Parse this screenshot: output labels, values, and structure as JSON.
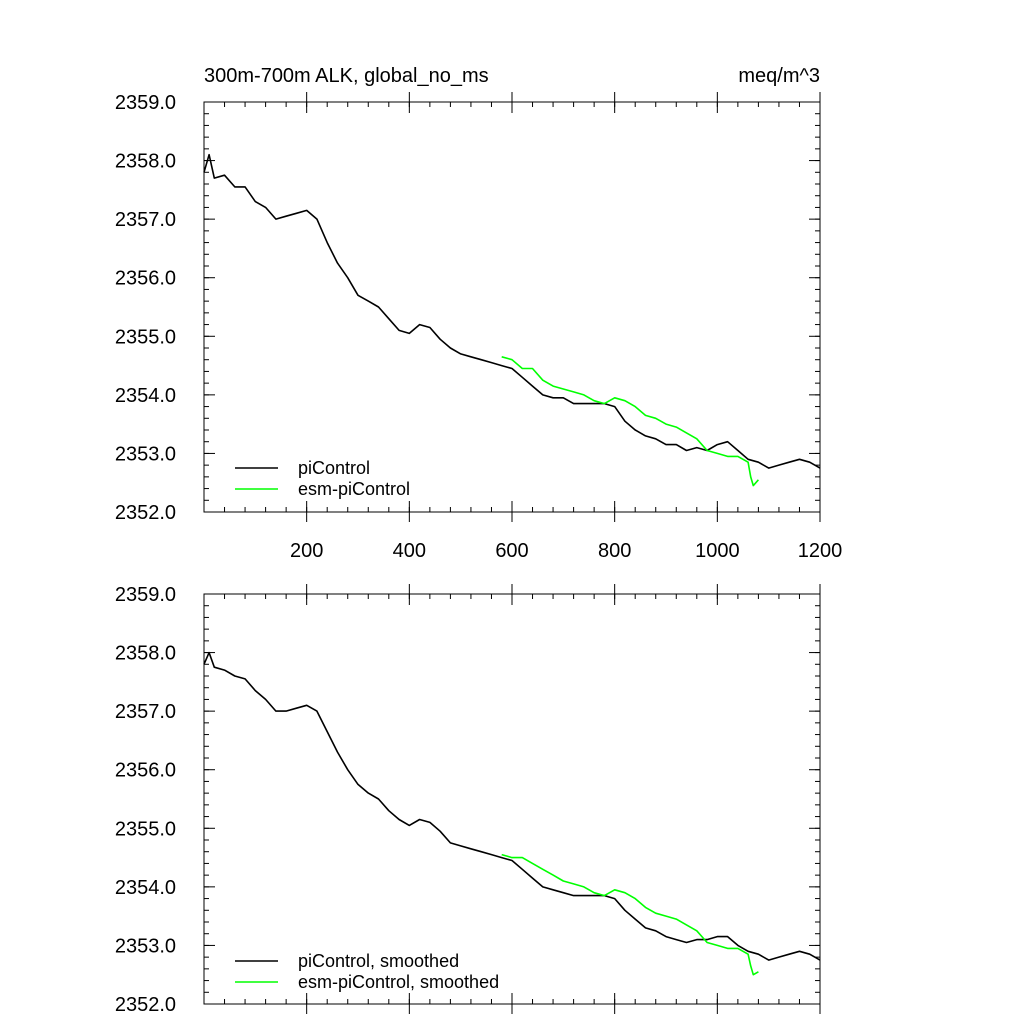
{
  "chart_data": [
    {
      "type": "line",
      "title": "300m-700m ALK, global_no_ms",
      "units": "meq/m^3",
      "xlim": [
        0,
        1200
      ],
      "ylim": [
        2352.0,
        2359.0
      ],
      "x_ticks": [
        200,
        400,
        600,
        800,
        1000,
        1200
      ],
      "x_tick_labels": [
        "200",
        "400",
        "600",
        "800",
        "1000",
        "1200"
      ],
      "y_ticks": [
        2352.0,
        2353.0,
        2354.0,
        2355.0,
        2356.0,
        2357.0,
        2358.0,
        2359.0
      ],
      "y_tick_labels": [
        "2352.0",
        "2353.0",
        "2354.0",
        "2355.0",
        "2356.0",
        "2357.0",
        "2358.0",
        "2359.0"
      ],
      "legend_position": "bottom-left",
      "series": [
        {
          "name": "piControl",
          "color": "#000000",
          "x": [
            0,
            10,
            20,
            40,
            60,
            80,
            100,
            120,
            140,
            160,
            180,
            200,
            220,
            240,
            260,
            280,
            300,
            320,
            340,
            360,
            380,
            400,
            420,
            440,
            460,
            480,
            500,
            520,
            540,
            560,
            580,
            600,
            620,
            640,
            660,
            680,
            700,
            720,
            740,
            760,
            780,
            800,
            820,
            840,
            860,
            880,
            900,
            920,
            940,
            960,
            980,
            1000,
            1020,
            1040,
            1060,
            1080,
            1100,
            1120,
            1140,
            1160,
            1180,
            1200
          ],
          "y": [
            2357.8,
            2358.1,
            2357.7,
            2357.75,
            2357.55,
            2357.55,
            2357.3,
            2357.2,
            2357.0,
            2357.05,
            2357.1,
            2357.15,
            2357.0,
            2356.6,
            2356.25,
            2356.0,
            2355.7,
            2355.6,
            2355.5,
            2355.3,
            2355.1,
            2355.05,
            2355.2,
            2355.15,
            2354.95,
            2354.8,
            2354.7,
            2354.65,
            2354.6,
            2354.55,
            2354.5,
            2354.45,
            2354.3,
            2354.15,
            2354.0,
            2353.95,
            2353.95,
            2353.85,
            2353.85,
            2353.85,
            2353.85,
            2353.8,
            2353.55,
            2353.4,
            2353.3,
            2353.25,
            2353.15,
            2353.15,
            2353.05,
            2353.1,
            2353.05,
            2353.15,
            2353.2,
            2353.05,
            2352.9,
            2352.85,
            2352.75,
            2352.8,
            2352.85,
            2352.9,
            2352.85,
            2352.75
          ]
        },
        {
          "name": "esm-piControl",
          "color": "#00ff00",
          "x": [
            580,
            600,
            620,
            640,
            660,
            680,
            700,
            720,
            740,
            760,
            780,
            800,
            820,
            840,
            860,
            880,
            900,
            920,
            940,
            960,
            980,
            1000,
            1020,
            1040,
            1050,
            1060,
            1065,
            1070,
            1080
          ],
          "y": [
            2354.65,
            2354.6,
            2354.45,
            2354.45,
            2354.25,
            2354.15,
            2354.1,
            2354.05,
            2354.0,
            2353.9,
            2353.85,
            2353.95,
            2353.9,
            2353.8,
            2353.65,
            2353.6,
            2353.5,
            2353.45,
            2353.35,
            2353.25,
            2353.05,
            2353.0,
            2352.95,
            2352.95,
            2352.9,
            2352.85,
            2352.6,
            2352.45,
            2352.55
          ]
        }
      ]
    },
    {
      "type": "line",
      "xlim": [
        0,
        1200
      ],
      "ylim": [
        2352.0,
        2359.0
      ],
      "x_ticks": [
        200,
        400,
        600,
        800,
        1000,
        1200
      ],
      "y_ticks": [
        2352.0,
        2353.0,
        2354.0,
        2355.0,
        2356.0,
        2357.0,
        2358.0,
        2359.0
      ],
      "y_tick_labels": [
        "2352.0",
        "2353.0",
        "2354.0",
        "2355.0",
        "2356.0",
        "2357.0",
        "2358.0",
        "2359.0"
      ],
      "legend_position": "bottom-left",
      "series": [
        {
          "name": "piControl, smoothed",
          "color": "#000000",
          "x": [
            0,
            10,
            20,
            40,
            60,
            80,
            100,
            120,
            140,
            160,
            180,
            200,
            220,
            240,
            260,
            280,
            300,
            320,
            340,
            360,
            380,
            400,
            420,
            440,
            460,
            480,
            500,
            520,
            540,
            560,
            580,
            600,
            620,
            640,
            660,
            680,
            700,
            720,
            740,
            760,
            780,
            800,
            820,
            840,
            860,
            880,
            900,
            920,
            940,
            960,
            980,
            1000,
            1020,
            1040,
            1060,
            1080,
            1100,
            1120,
            1140,
            1160,
            1180,
            1200
          ],
          "y": [
            2357.8,
            2358.0,
            2357.75,
            2357.7,
            2357.6,
            2357.55,
            2357.35,
            2357.2,
            2357.0,
            2357.0,
            2357.05,
            2357.1,
            2357.0,
            2356.65,
            2356.3,
            2356.0,
            2355.75,
            2355.6,
            2355.5,
            2355.3,
            2355.15,
            2355.05,
            2355.15,
            2355.1,
            2354.95,
            2354.75,
            2354.7,
            2354.65,
            2354.6,
            2354.55,
            2354.5,
            2354.45,
            2354.3,
            2354.15,
            2354.0,
            2353.95,
            2353.9,
            2353.85,
            2353.85,
            2353.85,
            2353.85,
            2353.8,
            2353.6,
            2353.45,
            2353.3,
            2353.25,
            2353.15,
            2353.1,
            2353.05,
            2353.1,
            2353.1,
            2353.15,
            2353.15,
            2353.0,
            2352.9,
            2352.85,
            2352.75,
            2352.8,
            2352.85,
            2352.9,
            2352.85,
            2352.75
          ]
        },
        {
          "name": "esm-piControl, smoothed",
          "color": "#00ff00",
          "x": [
            580,
            600,
            620,
            640,
            660,
            680,
            700,
            720,
            740,
            760,
            780,
            800,
            820,
            840,
            860,
            880,
            900,
            920,
            940,
            960,
            980,
            1000,
            1020,
            1040,
            1050,
            1060,
            1065,
            1070,
            1080
          ],
          "y": [
            2354.55,
            2354.5,
            2354.5,
            2354.4,
            2354.3,
            2354.2,
            2354.1,
            2354.05,
            2354.0,
            2353.9,
            2353.85,
            2353.95,
            2353.9,
            2353.8,
            2353.65,
            2353.55,
            2353.5,
            2353.45,
            2353.35,
            2353.25,
            2353.05,
            2353.0,
            2352.95,
            2352.95,
            2352.9,
            2352.85,
            2352.65,
            2352.5,
            2352.55
          ]
        }
      ]
    }
  ]
}
